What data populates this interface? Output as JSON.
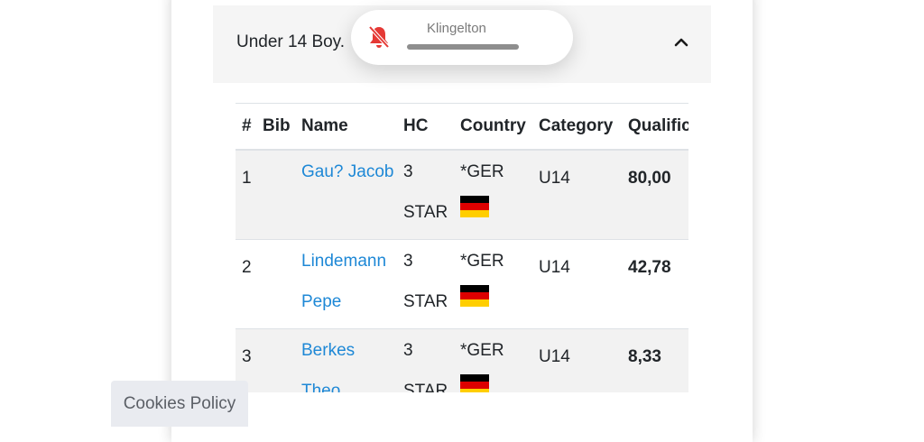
{
  "accordion": {
    "title": "Under 14 Boy.",
    "expanded": true
  },
  "notification": {
    "label": "Klingelton",
    "icon": "bell-muted-icon",
    "accent": "#e53935"
  },
  "table": {
    "headers": [
      "#",
      "Bib",
      "Name",
      "HC",
      "Country",
      "Category",
      "Qualific"
    ],
    "rows": [
      {
        "rank": "1",
        "bib": "",
        "name_line1": "Gau? Jacob",
        "name_line2": "",
        "hc_line1": "3",
        "hc_line2": "STAR",
        "country": "*GER",
        "category": "U14",
        "score": "80,00"
      },
      {
        "rank": "2",
        "bib": "",
        "name_line1": "Lindemann",
        "name_line2": "Pepe",
        "hc_line1": "3",
        "hc_line2": "STAR",
        "country": "*GER",
        "category": "U14",
        "score": "42,78"
      },
      {
        "rank": "3",
        "bib": "",
        "name_line1": "Berkes",
        "name_line2": "Theo",
        "hc_line1": "3",
        "hc_line2": "STAR",
        "country": "*GER",
        "category": "U14",
        "score": "8,33"
      }
    ]
  },
  "cookies": {
    "label": "Cookies Policy"
  },
  "colors": {
    "link": "#1e88d6",
    "flag_black": "#000000",
    "flag_red": "#dd0000",
    "flag_gold": "#ffce00"
  }
}
